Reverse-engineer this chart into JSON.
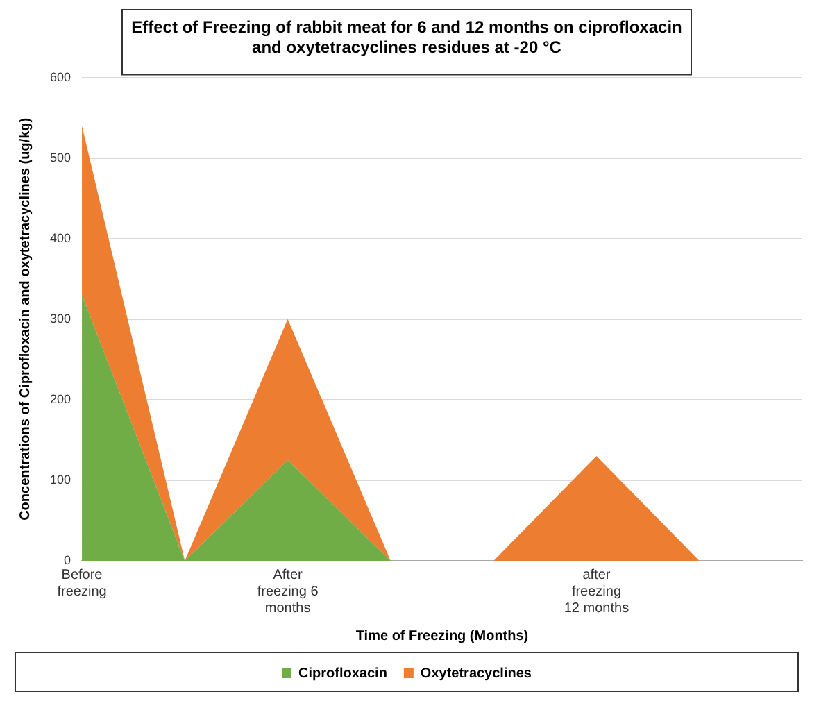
{
  "chart_data": {
    "type": "area",
    "title": "Effect of Freezing of rabbit meat for 6 and 12 months on ciprofloxacin and oxytetracyclines residues at -20 °C",
    "xlabel": "Time of Freezing (Months)",
    "ylabel": "Concentrations of Ciprofloxacin and oxytetracyclines (ug/kg)",
    "categories": [
      "Before freezing",
      null,
      "After freezing 6 months",
      null,
      null,
      "after freezing 12 months",
      null,
      null
    ],
    "stacked": true,
    "series": [
      {
        "name": "Ciprofloxacin",
        "color": "#70ad47",
        "values": [
          330,
          0,
          125,
          0,
          0,
          0,
          0,
          0
        ]
      },
      {
        "name": "Oxytetracyclines",
        "color": "#ed7d31",
        "values": [
          210,
          0,
          175,
          0,
          0,
          130,
          0,
          0
        ]
      }
    ],
    "ylim": [
      0,
      600
    ],
    "yticks": [
      0,
      100,
      200,
      300,
      400,
      500,
      600
    ],
    "grid": "y",
    "legend": "bottom"
  }
}
